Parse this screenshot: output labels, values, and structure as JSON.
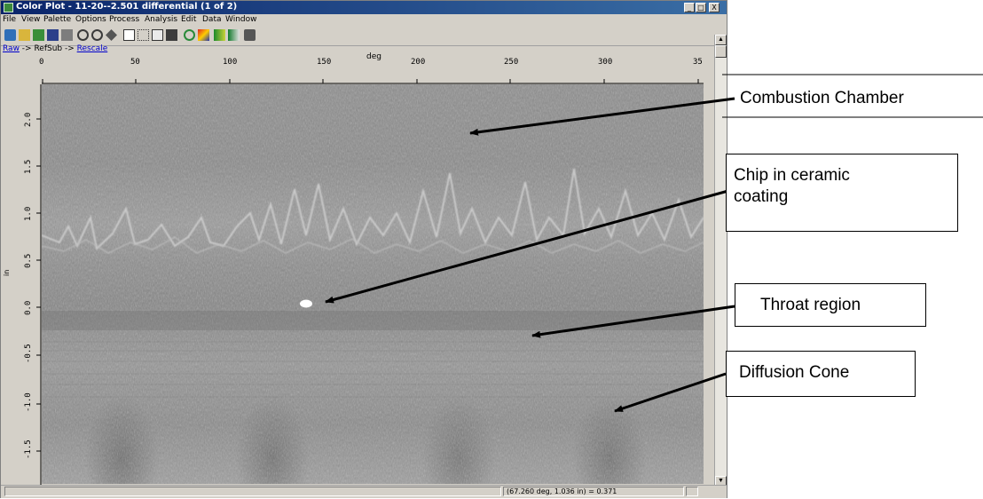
{
  "window": {
    "title": "Color Plot - 11-20--2.501 differential (1 of 2)",
    "controls": [
      "_",
      "□",
      "X"
    ]
  },
  "menu": [
    "File",
    "View",
    "Palette",
    "Options",
    "Process",
    "Analysis",
    "Edit",
    "Data",
    "Window"
  ],
  "toolbar_icons": [
    "new-plot-icon",
    "open-icon",
    "image-icon",
    "save-icon",
    "print-icon",
    "zoom-in-icon",
    "zoom-out-icon",
    "pan-icon",
    "grid-icon",
    "crosshair-icon",
    "table-icon",
    "export-icon",
    "refresh-icon",
    "color-icon",
    "palette-icon",
    "layer-icon",
    "camera-icon"
  ],
  "breadcrumb": {
    "raw": "Raw",
    "refsub": "RefSub",
    "rescale": "Rescale",
    "sep": " -> "
  },
  "plot": {
    "x_unit": "deg",
    "y_unit": "in",
    "x_ticks": [
      "0",
      "50",
      "100",
      "150",
      "200",
      "250",
      "300",
      "35"
    ],
    "y_ticks": [
      "2.0",
      "1.5",
      "1.0",
      "0.5",
      "0.0",
      "-0.5",
      "-1.0",
      "-1.5"
    ]
  },
  "status": {
    "readout": "(67.260 deg, 1.036 in) = 0.371"
  },
  "annotations": {
    "combustion": "Combustion Chamber",
    "chip_line1": "Chip in ceramic",
    "chip_line2": "coating",
    "throat": "Throat region",
    "diffusion": "Diffusion Cone"
  }
}
